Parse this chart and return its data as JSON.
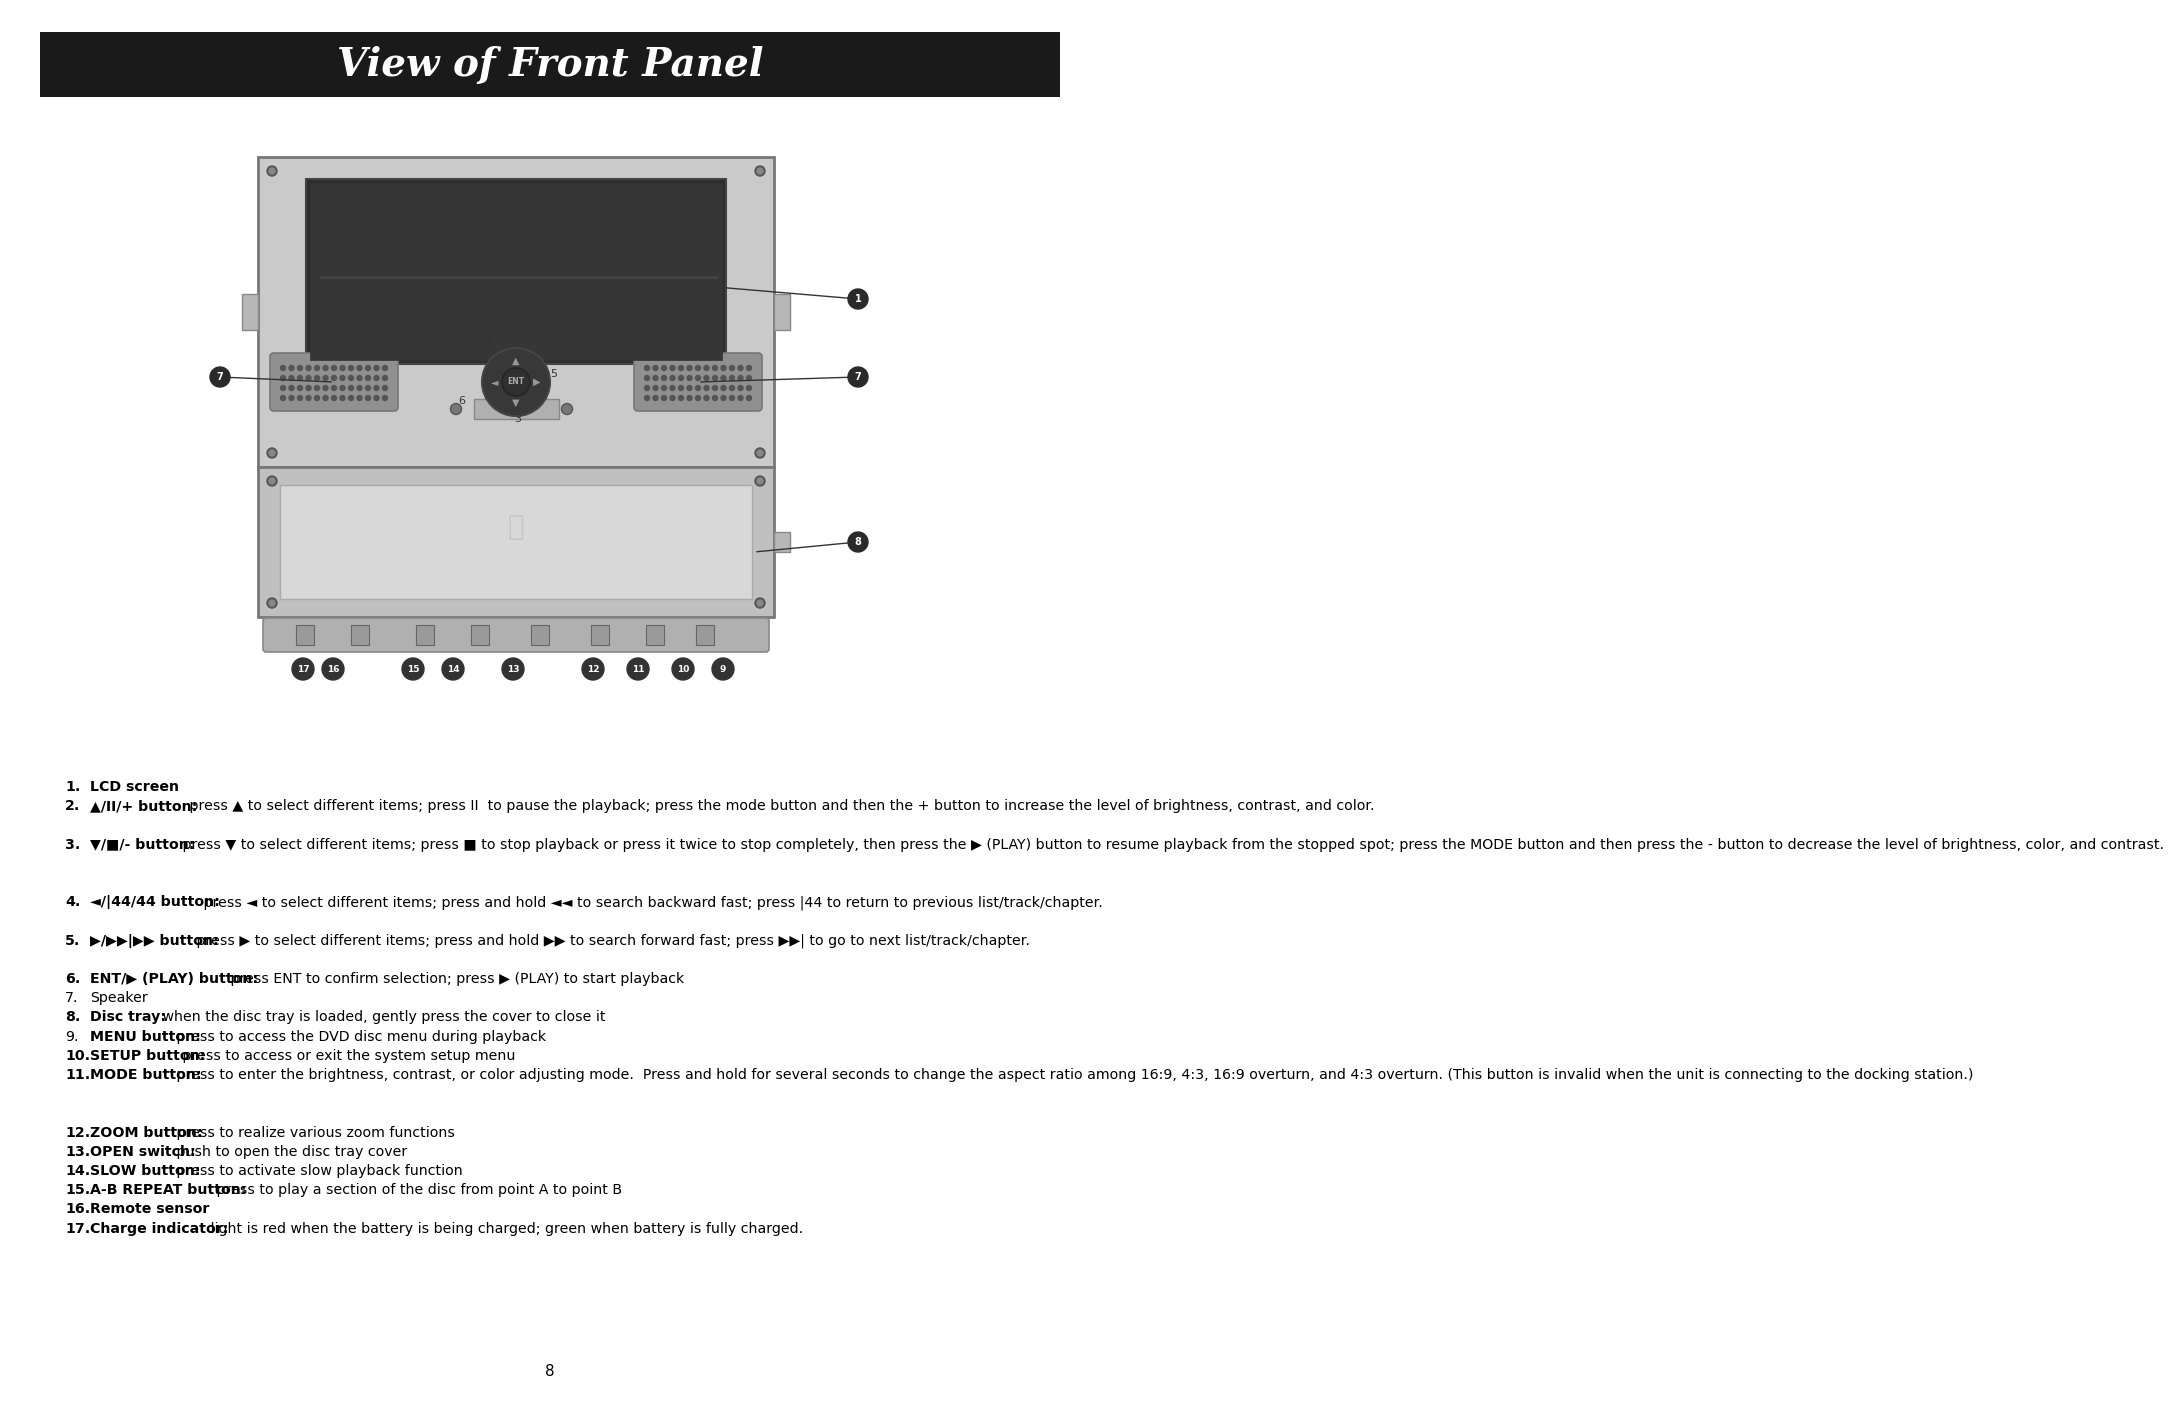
{
  "title": "View of Front Panel",
  "title_bg": "#1a1a1a",
  "title_color": "#ffffff",
  "title_fontsize": 28,
  "page_bg": "#ffffff",
  "page_number": "8",
  "items": [
    {
      "num": "1.",
      "bold": "LCD screen",
      "rest": "",
      "bold_num": true,
      "extra_lines": 0
    },
    {
      "num": "2.",
      "bold": "▲/II/+ button:",
      "rest": " press ▲ to select different items; press II  to pause the playback; press the mode button and then the + button to increase the level of brightness, contrast, and color.",
      "bold_num": true,
      "extra_lines": 1
    },
    {
      "num": "3.",
      "bold": "▼/■/- button:",
      "rest": " press ▼ to select different items; press ■ to stop playback or press it twice to stop completely, then press the ▶ (PLAY) button to resume playback from the stopped spot; press the MODE button and then press the - button to decrease the level of brightness, color, and contrast.",
      "bold_num": true,
      "extra_lines": 2
    },
    {
      "num": "4.",
      "bold": "◄/|44/44 button:",
      "rest": " press ◄ to select different items; press and hold ◄◄ to search backward fast; press |44 to return to previous list/track/chapter.",
      "bold_num": true,
      "extra_lines": 1
    },
    {
      "num": "5.",
      "bold": "▶/▶▶|▶▶ button:",
      "rest": " press ▶ to select different items; press and hold ▶▶ to search forward fast; press ▶▶| to go to next list/track/chapter.",
      "bold_num": true,
      "extra_lines": 1
    },
    {
      "num": "6.",
      "bold": "ENT/▶ (PLAY) button:",
      "rest": " press ENT to confirm selection; press ▶ (PLAY) to start playback",
      "bold_num": true,
      "extra_lines": 0
    },
    {
      "num": "7.",
      "bold": "",
      "rest": "Speaker",
      "bold_num": false,
      "extra_lines": 0
    },
    {
      "num": "8.",
      "bold": "Disc tray:",
      "rest": " when the disc tray is loaded, gently press the cover to close it",
      "bold_num": true,
      "extra_lines": 0
    },
    {
      "num": "9.",
      "bold": "MENU button:",
      "rest": " press to access the DVD disc menu during playback",
      "bold_num": false,
      "extra_lines": 0
    },
    {
      "num": "10.",
      "bold": "SETUP button:",
      "rest": " press to access or exit the system setup menu",
      "bold_num": true,
      "extra_lines": 0
    },
    {
      "num": "11.",
      "bold": "MODE button:",
      "rest": " press to enter the brightness, contrast, or color adjusting mode.  Press and hold for several seconds to change the aspect ratio among 16:9, 4:3, 16:9 overturn, and 4:3 overturn. (This button is invalid when the unit is connecting to the docking station.)",
      "bold_num": true,
      "extra_lines": 2
    },
    {
      "num": "12.",
      "bold": "ZOOM button:",
      "rest": " press to realize various zoom functions",
      "bold_num": true,
      "extra_lines": 0
    },
    {
      "num": "13.",
      "bold": "OPEN switch:",
      "rest": " push to open the disc tray cover",
      "bold_num": true,
      "extra_lines": 0
    },
    {
      "num": "14.",
      "bold": "SLOW button:",
      "rest": " press to activate slow playback function",
      "bold_num": true,
      "extra_lines": 0
    },
    {
      "num": "15.",
      "bold": "A-B REPEAT button:",
      "rest": " press to play a section of the disc from point A to point B",
      "bold_num": true,
      "extra_lines": 0
    },
    {
      "num": "16.",
      "bold": "Remote sensor",
      "rest": "",
      "bold_num": true,
      "extra_lines": 0
    },
    {
      "num": "17.",
      "bold": "Charge indicator:",
      "rest": " light is red when the battery is being charged; green when battery is fully charged.",
      "bold_num": true,
      "extra_lines": 0
    }
  ]
}
